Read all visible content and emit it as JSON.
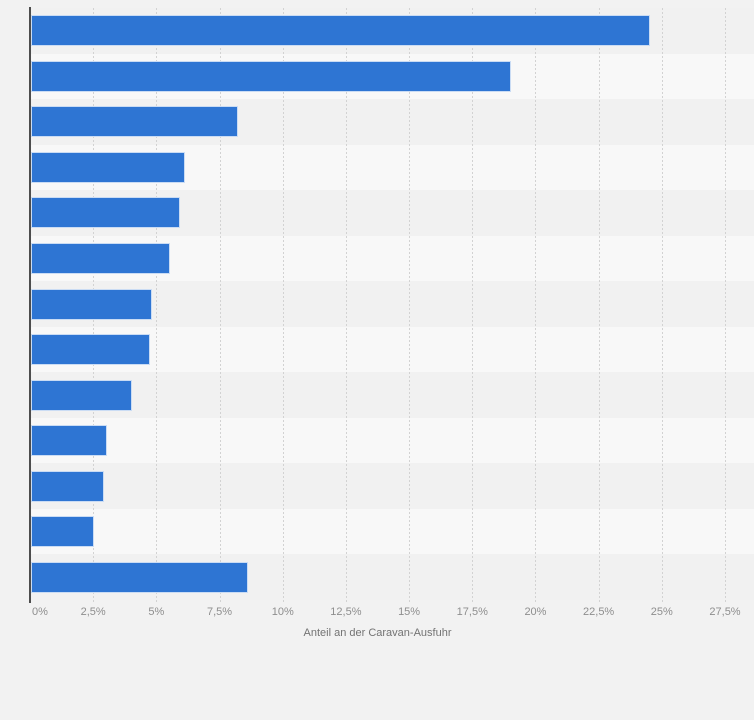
{
  "chart_data": {
    "type": "bar",
    "orientation": "horizontal",
    "title": "",
    "xlabel": "Anteil an der Caravan-Ausfuhr",
    "ylabel": "",
    "categories": [
      "",
      "",
      "",
      "",
      "",
      "",
      "",
      "",
      "",
      "",
      "",
      "",
      ""
    ],
    "values": [
      24.5,
      19.0,
      8.2,
      6.1,
      5.9,
      5.5,
      4.8,
      4.7,
      4.0,
      3.0,
      2.9,
      2.5,
      8.6
    ],
    "unit": "%",
    "xlim": [
      0,
      27.5
    ],
    "x_ticks": [
      {
        "value": 0,
        "label": "0%"
      },
      {
        "value": 2.5,
        "label": "2,5%"
      },
      {
        "value": 5,
        "label": "5%"
      },
      {
        "value": 7.5,
        "label": "7,5%"
      },
      {
        "value": 10,
        "label": "10%"
      },
      {
        "value": 12.5,
        "label": "12,5%"
      },
      {
        "value": 15,
        "label": "15%"
      },
      {
        "value": 17.5,
        "label": "17,5%"
      },
      {
        "value": 20,
        "label": "20%"
      },
      {
        "value": 22.5,
        "label": "22,5%"
      },
      {
        "value": 25,
        "label": "25%"
      },
      {
        "value": 27.5,
        "label": "27,5%"
      }
    ],
    "grid": "vertical-dashed",
    "legend": "none",
    "colors": {
      "bar_fill": "#2e75d3",
      "bar_border": "#ffffff",
      "background": "#f2f2f2",
      "band_odd": "#f1f1f1",
      "band_even": "#f8f8f8",
      "gridline": "#d2d2d2",
      "axis_line": "#4d4d4d",
      "tick_text": "#8e8e8e",
      "axis_title_text": "#737373"
    }
  }
}
